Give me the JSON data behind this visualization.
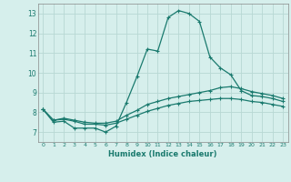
{
  "xlabel": "Humidex (Indice chaleur)",
  "xlim": [
    -0.5,
    23.5
  ],
  "ylim": [
    6.5,
    13.5
  ],
  "yticks": [
    7,
    8,
    9,
    10,
    11,
    12,
    13
  ],
  "xticks": [
    0,
    1,
    2,
    3,
    4,
    5,
    6,
    7,
    8,
    9,
    10,
    11,
    12,
    13,
    14,
    15,
    16,
    17,
    18,
    19,
    20,
    21,
    22,
    23
  ],
  "bg_color": "#d6efec",
  "grid_color": "#b8d8d4",
  "line_color": "#1a7a6e",
  "line1_x": [
    0,
    1,
    2,
    3,
    4,
    5,
    6,
    7,
    8,
    9,
    10,
    11,
    12,
    13,
    14,
    15,
    16,
    17,
    18,
    19,
    20,
    21,
    22,
    23
  ],
  "line1_y": [
    8.15,
    7.5,
    7.55,
    7.2,
    7.2,
    7.2,
    7.0,
    7.3,
    8.5,
    9.8,
    11.2,
    11.1,
    12.8,
    13.15,
    13.0,
    12.6,
    10.8,
    10.25,
    9.9,
    9.1,
    8.85,
    8.8,
    8.7,
    8.55
  ],
  "line2_x": [
    0,
    1,
    2,
    3,
    4,
    5,
    6,
    7,
    8,
    9,
    10,
    11,
    12,
    13,
    14,
    15,
    16,
    17,
    18,
    19,
    20,
    21,
    22,
    23
  ],
  "line2_y": [
    8.15,
    7.6,
    7.7,
    7.6,
    7.5,
    7.45,
    7.45,
    7.55,
    7.85,
    8.1,
    8.4,
    8.55,
    8.7,
    8.8,
    8.9,
    9.0,
    9.1,
    9.25,
    9.3,
    9.2,
    9.05,
    8.95,
    8.85,
    8.7
  ],
  "line3_x": [
    0,
    1,
    2,
    3,
    4,
    5,
    6,
    7,
    8,
    9,
    10,
    11,
    12,
    13,
    14,
    15,
    16,
    17,
    18,
    19,
    20,
    21,
    22,
    23
  ],
  "line3_y": [
    8.15,
    7.6,
    7.65,
    7.55,
    7.4,
    7.4,
    7.35,
    7.45,
    7.65,
    7.85,
    8.05,
    8.2,
    8.35,
    8.45,
    8.55,
    8.6,
    8.65,
    8.7,
    8.7,
    8.65,
    8.55,
    8.5,
    8.4,
    8.3
  ]
}
